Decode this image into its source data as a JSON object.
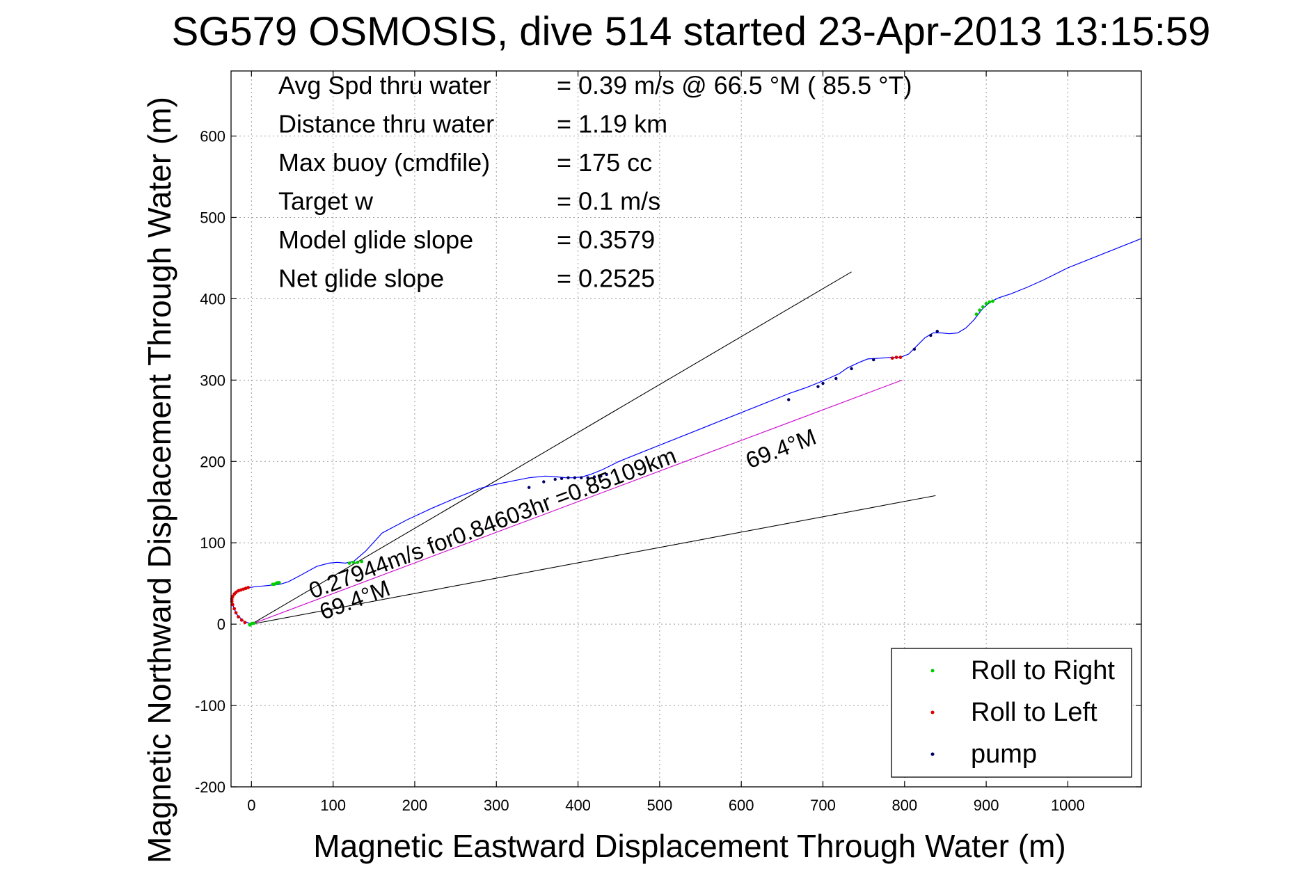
{
  "chart_data": {
    "type": "scatter",
    "title": "SG579 OSMOSIS, dive 514 started 23-Apr-2013 13:15:59",
    "xlabel": "Magnetic Eastward Displacement Through Water (m)",
    "ylabel": "Magnetic Northward Displacement Through Water (m)",
    "xlim": [
      -25,
      1090
    ],
    "ylim": [
      -200,
      680
    ],
    "xticks": [
      0,
      100,
      200,
      300,
      400,
      500,
      600,
      700,
      800,
      900,
      1000
    ],
    "yticks": [
      -200,
      -100,
      0,
      100,
      200,
      300,
      400,
      500,
      600
    ],
    "grid": true,
    "legend_position": "bottom-right",
    "info_rows": [
      {
        "label": "Avg Spd thru water",
        "value": "=  0.39 m/s @  66.5 °M ( 85.5 °T)"
      },
      {
        "label": "Distance thru water",
        "value": "=  1.19 km"
      },
      {
        "label": "Max buoy (cmdfile)",
        "value": "= 175 cc"
      },
      {
        "label": "Target w",
        "value": "= 0.1 m/s"
      },
      {
        "label": "Model glide slope",
        "value": "= 0.3579"
      },
      {
        "label": "Net glide slope",
        "value": "= 0.2525"
      }
    ],
    "annotations": [
      {
        "text": "0.27944m/s for0.84603hr =0.85109km",
        "x": 75,
        "y": 31,
        "angle_deg": 20.6
      },
      {
        "text": "69.4°M",
        "x": 88,
        "y": 5,
        "angle_deg": 20.6
      },
      {
        "text": "69.4°M",
        "x": 610,
        "y": 191,
        "angle_deg": 20.6
      }
    ],
    "lines": [
      {
        "name": "cone-upper",
        "color": "#000000",
        "x": [
          0,
          735
        ],
        "y": [
          0,
          433
        ]
      },
      {
        "name": "cone-lower",
        "color": "#000000",
        "x": [
          0,
          838
        ],
        "y": [
          0,
          158
        ]
      },
      {
        "name": "net-track",
        "color": "#cc00cc",
        "x": [
          0,
          797
        ],
        "y": [
          0,
          300
        ]
      }
    ],
    "series": [
      {
        "role": "track",
        "color": "#0000ff",
        "x": [
          0,
          -10,
          -18,
          -23,
          -24,
          -22,
          -17,
          -10,
          -3,
          5,
          15,
          25,
          35,
          45,
          60,
          80,
          95,
          105,
          115,
          125,
          140,
          160,
          190,
          220,
          250,
          280,
          300,
          320,
          340,
          360,
          375,
          385,
          395,
          405,
          415,
          430,
          450,
          480,
          510,
          540,
          570,
          600,
          630,
          660,
          680,
          700,
          720,
          730,
          745,
          755,
          770,
          785,
          795,
          805,
          815,
          825,
          835,
          845,
          855,
          865,
          875,
          885,
          895,
          905,
          915,
          930,
          950,
          970,
          1000,
          1030,
          1060,
          1090
        ],
        "y": [
          0,
          4,
          12,
          24,
          32,
          38,
          42,
          44,
          45,
          46,
          47,
          48,
          49,
          52,
          60,
          71,
          75,
          76,
          75,
          77,
          90,
          112,
          128,
          142,
          155,
          167,
          172,
          176,
          180,
          182,
          181,
          180,
          180,
          181,
          184,
          190,
          200,
          212,
          224,
          236,
          248,
          260,
          272,
          284,
          291,
          299,
          308,
          315,
          322,
          326,
          327,
          328,
          328,
          332,
          342,
          352,
          358,
          358,
          357,
          358,
          364,
          374,
          387,
          396,
          401,
          406,
          414,
          423,
          438,
          450,
          462,
          474
        ]
      },
      {
        "role": "roll-right",
        "name": "Roll to Right",
        "color": "#00cc00",
        "x": [
          -2,
          -1,
          1,
          3,
          26,
          28,
          30,
          32,
          34,
          120,
          125,
          130,
          135,
          888,
          892,
          896,
          900,
          904,
          908
        ],
        "y": [
          -1,
          0,
          1,
          1,
          49,
          49,
          50,
          51,
          51,
          75,
          76,
          76,
          77,
          381,
          386,
          390,
          394,
          396,
          397
        ]
      },
      {
        "role": "roll-left",
        "name": "Roll to Left",
        "color": "#dd0000",
        "x": [
          -8,
          -12,
          -16,
          -19,
          -21,
          -23,
          -24,
          -24,
          -23,
          -21,
          -19,
          -16,
          -13,
          -10,
          -7,
          -4,
          785,
          790,
          795
        ],
        "y": [
          2,
          5,
          9,
          14,
          19,
          24,
          28,
          31,
          34,
          37,
          39,
          41,
          42,
          43,
          44,
          45,
          327,
          328,
          328
        ]
      },
      {
        "role": "pump",
        "name": "pump",
        "color": "#000066",
        "x": [
          340,
          358,
          372,
          380,
          388,
          396,
          404,
          412,
          420,
          428,
          435,
          658,
          694,
          700,
          716,
          735,
          762,
          812,
          832,
          840
        ],
        "y": [
          168,
          175,
          178,
          179,
          180,
          180,
          180,
          180,
          181,
          182,
          184,
          276,
          292,
          296,
          302,
          314,
          325,
          338,
          355,
          360
        ]
      }
    ]
  }
}
